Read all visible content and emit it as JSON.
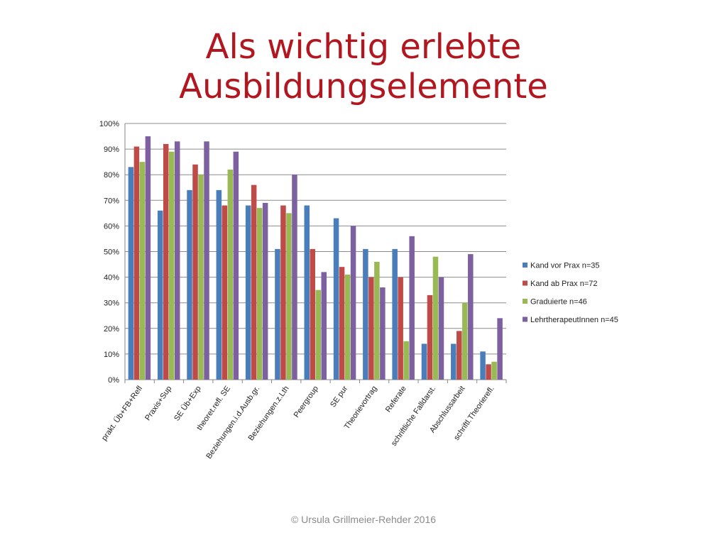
{
  "slide": {
    "title_line1": "Als wichtig erlebte",
    "title_line2": "Ausbildungselemente",
    "footer": "© Ursula Grillmeier-Rehder 2016",
    "title_color": "#B2161F"
  },
  "chart_data": {
    "type": "bar",
    "title": "",
    "xlabel": "",
    "ylabel": "",
    "ylim": [
      0,
      100
    ],
    "y_ticks": [
      "0%",
      "10%",
      "20%",
      "30%",
      "40%",
      "50%",
      "60%",
      "70%",
      "80%",
      "90%",
      "100%"
    ],
    "grid": true,
    "legend_position": "right",
    "categories": [
      "prakt. Üb+FB+Refl",
      "Praxis+Sup",
      "SE Üb+Exp",
      "theoret.refl. SE",
      "Beziehungen.i.d.Ausb.gr.",
      "Beziehungen.z.Lth",
      "Peergroup",
      "SE pur",
      "Theorievortrag",
      "Referate",
      "schriftliche Falldarst.",
      "Abschlussarbeit",
      "schriftl.Theorierefl."
    ],
    "series": [
      {
        "name": "Kand vor Prax n=35",
        "color": "#4A7EBB",
        "values": [
          83,
          66,
          74,
          74,
          68,
          51,
          68,
          63,
          51,
          51,
          14,
          14,
          11
        ]
      },
      {
        "name": "Kand ab Prax n=72",
        "color": "#BE4B48",
        "values": [
          91,
          92,
          84,
          68,
          76,
          68,
          51,
          44,
          40,
          40,
          33,
          19,
          6
        ]
      },
      {
        "name": "Graduierte n=46",
        "color": "#98B954",
        "values": [
          85,
          89,
          80,
          82,
          67,
          65,
          35,
          41,
          46,
          15,
          48,
          30,
          7
        ]
      },
      {
        "name": "LehrtherapeutInnen n=45",
        "color": "#7D60A0",
        "values": [
          95,
          93,
          93,
          89,
          69,
          80,
          42,
          60,
          36,
          56,
          40,
          49,
          24
        ]
      }
    ]
  }
}
